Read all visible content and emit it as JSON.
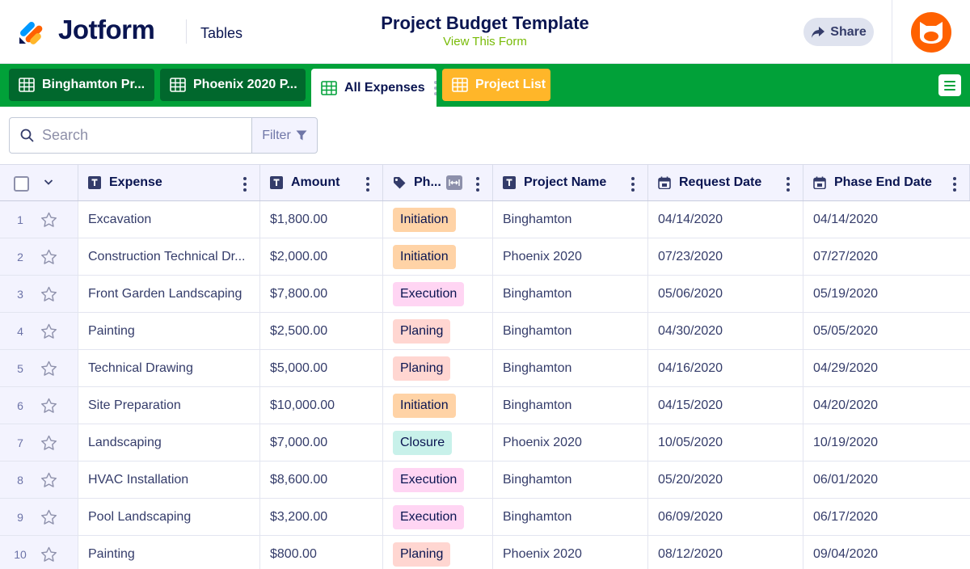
{
  "header": {
    "logo_text": "Jotform",
    "section": "Tables",
    "form_title": "Project Budget Template",
    "view_form": "View This Form",
    "share_label": "Share"
  },
  "tabs": [
    {
      "label": "Binghamton Pr...",
      "state": "default"
    },
    {
      "label": "Phoenix 2020 P...",
      "state": "default"
    },
    {
      "label": "All Expenses",
      "state": "active"
    },
    {
      "label": "Project List",
      "state": "highlight"
    }
  ],
  "toolbar": {
    "search_placeholder": "Search",
    "filter_label": "Filter"
  },
  "columns": [
    "Expense",
    "Amount",
    "Ph...",
    "Project Name",
    "Request Date",
    "Phase End Date"
  ],
  "phase_colors": {
    "Initiation": "#ffd3a6",
    "Execution": "#ffd5f3",
    "Planing": "#ffd6d1",
    "Closure": "#c8f1ea"
  },
  "rows": [
    {
      "num": "1",
      "expense": "Excavation",
      "amount": "$1,800.00",
      "phase": "Initiation",
      "project": "Binghamton",
      "request_date": "04/14/2020",
      "end_date": "04/14/2020"
    },
    {
      "num": "2",
      "expense": "Construction Technical Dr...",
      "amount": "$2,000.00",
      "phase": "Initiation",
      "project": "Phoenix 2020",
      "request_date": "07/23/2020",
      "end_date": "07/27/2020"
    },
    {
      "num": "3",
      "expense": "Front Garden Landscaping",
      "amount": "$7,800.00",
      "phase": "Execution",
      "project": "Binghamton",
      "request_date": "05/06/2020",
      "end_date": "05/19/2020"
    },
    {
      "num": "4",
      "expense": "Painting",
      "amount": "$2,500.00",
      "phase": "Planing",
      "project": "Binghamton",
      "request_date": "04/30/2020",
      "end_date": "05/05/2020"
    },
    {
      "num": "5",
      "expense": "Technical Drawing",
      "amount": "$5,000.00",
      "phase": "Planing",
      "project": "Binghamton",
      "request_date": "04/16/2020",
      "end_date": "04/29/2020"
    },
    {
      "num": "6",
      "expense": "Site Preparation",
      "amount": "$10,000.00",
      "phase": "Initiation",
      "project": "Binghamton",
      "request_date": "04/15/2020",
      "end_date": "04/20/2020"
    },
    {
      "num": "7",
      "expense": "Landscaping",
      "amount": "$7,000.00",
      "phase": "Closure",
      "project": "Phoenix 2020",
      "request_date": "10/05/2020",
      "end_date": "10/19/2020"
    },
    {
      "num": "8",
      "expense": "HVAC Installation",
      "amount": "$8,600.00",
      "phase": "Execution",
      "project": "Binghamton",
      "request_date": "05/20/2020",
      "end_date": "06/01/2020"
    },
    {
      "num": "9",
      "expense": "Pool Landscaping",
      "amount": "$3,200.00",
      "phase": "Execution",
      "project": "Binghamton",
      "request_date": "06/09/2020",
      "end_date": "06/17/2020"
    },
    {
      "num": "10",
      "expense": "Painting",
      "amount": "$800.00",
      "phase": "Planing",
      "project": "Phoenix 2020",
      "request_date": "08/12/2020",
      "end_date": "09/04/2020"
    }
  ]
}
